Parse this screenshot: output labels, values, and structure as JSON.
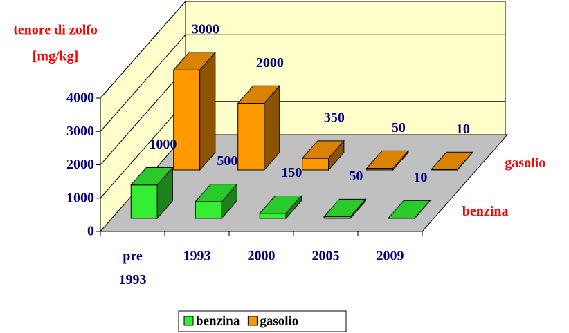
{
  "chart_data": {
    "type": "bar3d",
    "y_label": [
      "tenore di zolfo",
      "[mg/kg]"
    ],
    "categories": [
      "pre 1993",
      "1993",
      "2000",
      "2005",
      "2009"
    ],
    "series": [
      {
        "name": "benzina",
        "color": "#33ee33",
        "values": [
          1000,
          500,
          150,
          50,
          10
        ]
      },
      {
        "name": "gasolio",
        "color": "#ff9900",
        "values": [
          3000,
          2000,
          350,
          50,
          10
        ]
      }
    ],
    "ylim": [
      0,
      4000
    ],
    "yticks": [
      0,
      1000,
      2000,
      3000,
      4000
    ],
    "grid": true
  }
}
